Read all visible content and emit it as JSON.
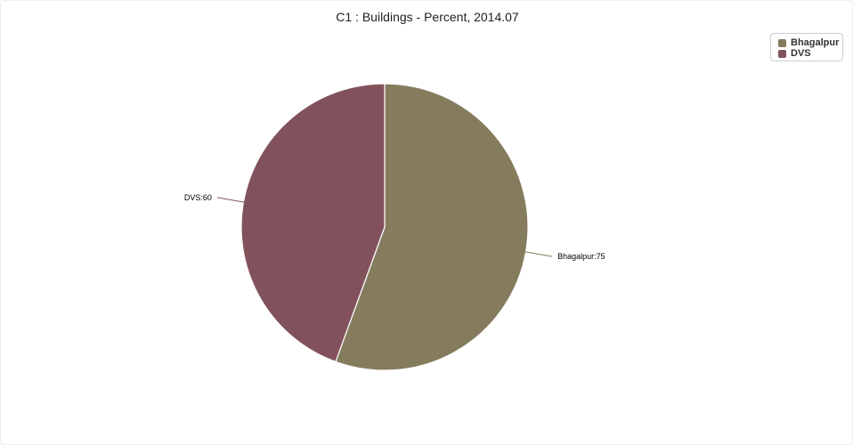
{
  "chart_data": {
    "type": "pie",
    "title": "C1 : Buildings - Percent, 2014.07",
    "slices": [
      {
        "name": "Bhagalpur",
        "value": 75,
        "label": "Bhagalpur:75",
        "color": "#847c5d"
      },
      {
        "name": "DVS",
        "value": 60,
        "label": "DVS:60",
        "color": "#81525b"
      }
    ],
    "legend": {
      "position": "top-right",
      "items": [
        {
          "name": "Bhagalpur",
          "color": "#847c5d"
        },
        {
          "name": "DVS",
          "color": "#81525b"
        }
      ]
    }
  }
}
